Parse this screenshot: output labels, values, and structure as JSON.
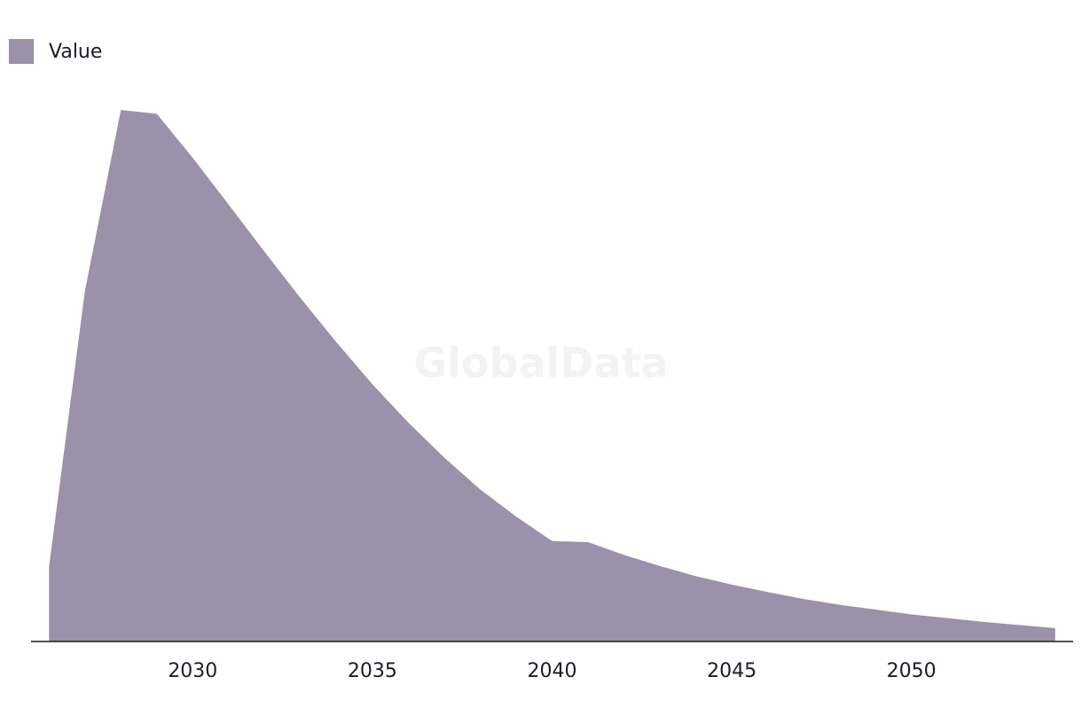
{
  "watermark": "GlobalData",
  "chart_data": {
    "type": "area",
    "title": "",
    "xlabel": "",
    "ylabel": "",
    "legend": {
      "position": "top-left",
      "entries": [
        "Value"
      ]
    },
    "grid": false,
    "x_ticks": [
      2030,
      2035,
      2040,
      2045,
      2050
    ],
    "xlim": [
      2025.5,
      2054.5
    ],
    "ylim": [
      0,
      100
    ],
    "series": [
      {
        "name": "Value",
        "color": "#9b91aa",
        "x": [
          2026,
          2027,
          2028,
          2029,
          2030,
          2031,
          2032,
          2033,
          2034,
          2035,
          2036,
          2037,
          2038,
          2039,
          2040,
          2041,
          2042,
          2043,
          2044,
          2045,
          2046,
          2047,
          2048,
          2049,
          2050,
          2051,
          2052,
          2053,
          2054
        ],
        "values": [
          14,
          66,
          100,
          99.3,
          91,
          82.2,
          73.3,
          64.6,
          56.3,
          48.4,
          41.2,
          34.6,
          28.6,
          23.5,
          18.9,
          18.7,
          16.3,
          14.2,
          12.3,
          10.7,
          9.3,
          8,
          6.9,
          6,
          5.1,
          4.4,
          3.7,
          3.1,
          2.5
        ]
      }
    ],
    "axis_color": "#1a1a1a"
  }
}
